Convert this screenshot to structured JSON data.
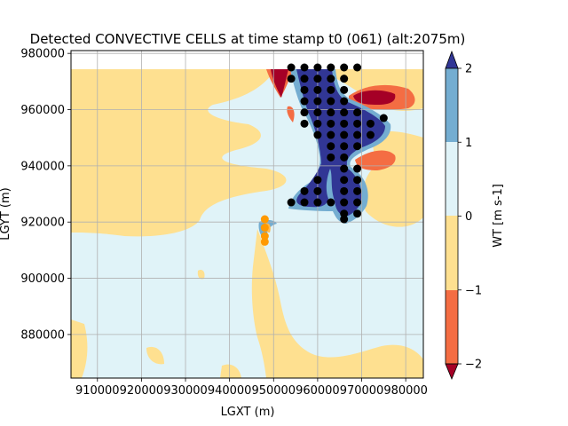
{
  "chart_data": {
    "type": "contour",
    "title": "Detected CONVECTIVE CELLS at time stamp t0 (061) (alt:2075m)",
    "xlabel": "LGXT (m)",
    "ylabel": "LGYT (m)",
    "xlim": [
      904000,
      984000
    ],
    "ylim": [
      864500,
      981000
    ],
    "grid": true,
    "xticks": [
      910000,
      920000,
      930000,
      940000,
      950000,
      960000,
      970000,
      980000
    ],
    "xtick_labels": [
      "910000",
      "920000",
      "930000",
      "940000",
      "950000",
      "960000",
      "970000",
      "980000"
    ],
    "yticks": [
      880000,
      900000,
      920000,
      940000,
      960000,
      980000
    ],
    "ytick_labels": [
      "880000",
      "900000",
      "920000",
      "940000",
      "960000",
      "980000"
    ],
    "colorbar": {
      "label": "WT [m s-1]",
      "levels": [
        -2,
        -1,
        0,
        1,
        2
      ],
      "tick_labels": [
        "−2",
        "−1",
        "0",
        "1",
        "2"
      ],
      "colors": {
        "below_min": "#a50026",
        "lvl_m2_m1": "#f46d43",
        "lvl_m1_0": "#fee090",
        "lvl_0_1": "#e0f3f8",
        "lvl_1_2": "#74add1",
        "above_max": "#313695"
      }
    },
    "series": [
      {
        "color": "#000000",
        "points": [
          [
            954000,
            975000
          ],
          [
            957000,
            975000
          ],
          [
            960000,
            975000
          ],
          [
            963000,
            975000
          ],
          [
            966000,
            975000
          ],
          [
            969000,
            975000
          ],
          [
            954000,
            971000
          ],
          [
            957000,
            971000
          ],
          [
            960000,
            971000
          ],
          [
            963000,
            971000
          ],
          [
            966000,
            971000
          ],
          [
            957000,
            967000
          ],
          [
            960000,
            967000
          ],
          [
            963000,
            967000
          ],
          [
            966000,
            967000
          ],
          [
            957000,
            963000
          ],
          [
            960000,
            963000
          ],
          [
            963000,
            963000
          ],
          [
            966000,
            963000
          ],
          [
            957000,
            959000
          ],
          [
            960000,
            959000
          ],
          [
            963000,
            959000
          ],
          [
            966000,
            959000
          ],
          [
            969000,
            959000
          ],
          [
            957000,
            955000
          ],
          [
            960000,
            955000
          ],
          [
            963000,
            955000
          ],
          [
            966000,
            955000
          ],
          [
            969000,
            955000
          ],
          [
            972000,
            955000
          ],
          [
            975000,
            957000
          ],
          [
            960000,
            951000
          ],
          [
            963000,
            951000
          ],
          [
            966000,
            951000
          ],
          [
            969000,
            951000
          ],
          [
            972000,
            951000
          ],
          [
            963000,
            947000
          ],
          [
            966000,
            947000
          ],
          [
            969000,
            947000
          ],
          [
            963000,
            943000
          ],
          [
            966000,
            943000
          ],
          [
            966000,
            939000
          ],
          [
            969000,
            939000
          ],
          [
            960000,
            935000
          ],
          [
            966000,
            935000
          ],
          [
            969000,
            935000
          ],
          [
            957000,
            931000
          ],
          [
            960000,
            931000
          ],
          [
            966000,
            931000
          ],
          [
            969000,
            931000
          ],
          [
            954000,
            927000
          ],
          [
            957000,
            927000
          ],
          [
            960000,
            927000
          ],
          [
            963000,
            927000
          ],
          [
            966000,
            927000
          ],
          [
            969000,
            927000
          ],
          [
            966000,
            923000
          ],
          [
            969000,
            923000
          ],
          [
            966000,
            921000
          ]
        ]
      },
      {
        "color": "#ff9900",
        "points": [
          [
            948000,
            921000
          ],
          [
            948000,
            918000
          ],
          [
            948000,
            915000
          ],
          [
            948000,
            913000
          ]
        ]
      }
    ]
  }
}
